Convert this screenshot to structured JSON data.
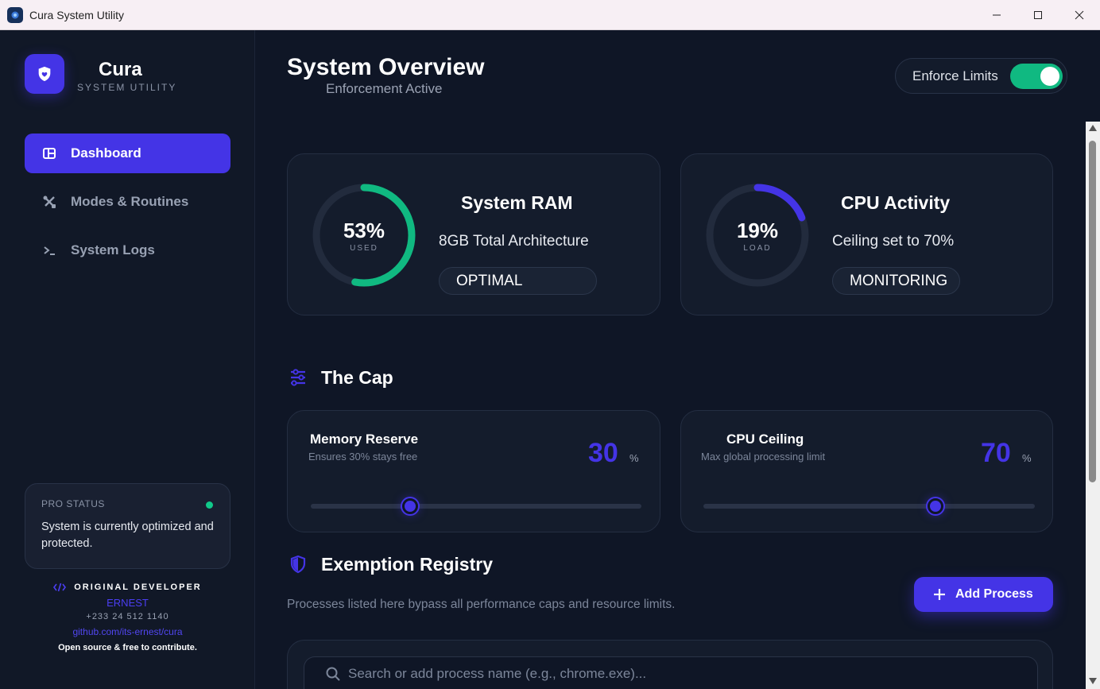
{
  "window": {
    "title": "Cura System Utility",
    "controls": [
      "minimize",
      "maximize",
      "close"
    ]
  },
  "brand": {
    "name": "Cura",
    "subtitle": "SYSTEM UTILITY",
    "logo_icon": "shield-heart-icon",
    "accent_color": "#4434e6"
  },
  "sidebar": {
    "items": [
      {
        "label": "Dashboard",
        "icon": "layout-icon",
        "active": true
      },
      {
        "label": "Modes & Routines",
        "icon": "tools-icon",
        "active": false
      },
      {
        "label": "System Logs",
        "icon": "terminal-icon",
        "active": false
      }
    ],
    "pro": {
      "title": "PRO STATUS",
      "text": "System is currently optimized and protected.",
      "status_color": "#10c98a"
    },
    "developer": {
      "heading": "ORIGINAL DEVELOPER",
      "name": "ERNEST",
      "phone": "+233 24 512 1140",
      "link": "github.com/its-ernest/cura",
      "note": "Open source & free to contribute."
    }
  },
  "header": {
    "title": "System Overview",
    "subtitle": "Enforcement Active",
    "enforce_label": "Enforce Limits",
    "enforce_on": true
  },
  "stats": {
    "ram": {
      "value": "53%",
      "value_fraction": 0.53,
      "caption": "USED",
      "title": "System RAM",
      "desc": "8GB Total Architecture",
      "badge": "OPTIMAL",
      "color": "#10b981"
    },
    "cpu": {
      "value": "19%",
      "value_fraction": 0.19,
      "caption": "LOAD",
      "title": "CPU Activity",
      "desc": "Ceiling set to 70%",
      "badge": "MONITORING",
      "color": "#4434e6"
    }
  },
  "cap": {
    "heading": "The Cap",
    "memory": {
      "title": "Memory Reserve",
      "sub": "Ensures 30% stays free",
      "value": "30",
      "unit": "%",
      "fraction": 0.3
    },
    "cpu": {
      "title": "CPU Ceiling",
      "sub": "Max global processing limit",
      "value": "70",
      "unit": "%",
      "fraction": 0.7
    }
  },
  "exemption": {
    "heading": "Exemption Registry",
    "desc": "Processes listed here bypass all performance caps and resource limits.",
    "add_label": "Add Process",
    "search_placeholder": "Search or add process name (e.g., chrome.exe)..."
  }
}
